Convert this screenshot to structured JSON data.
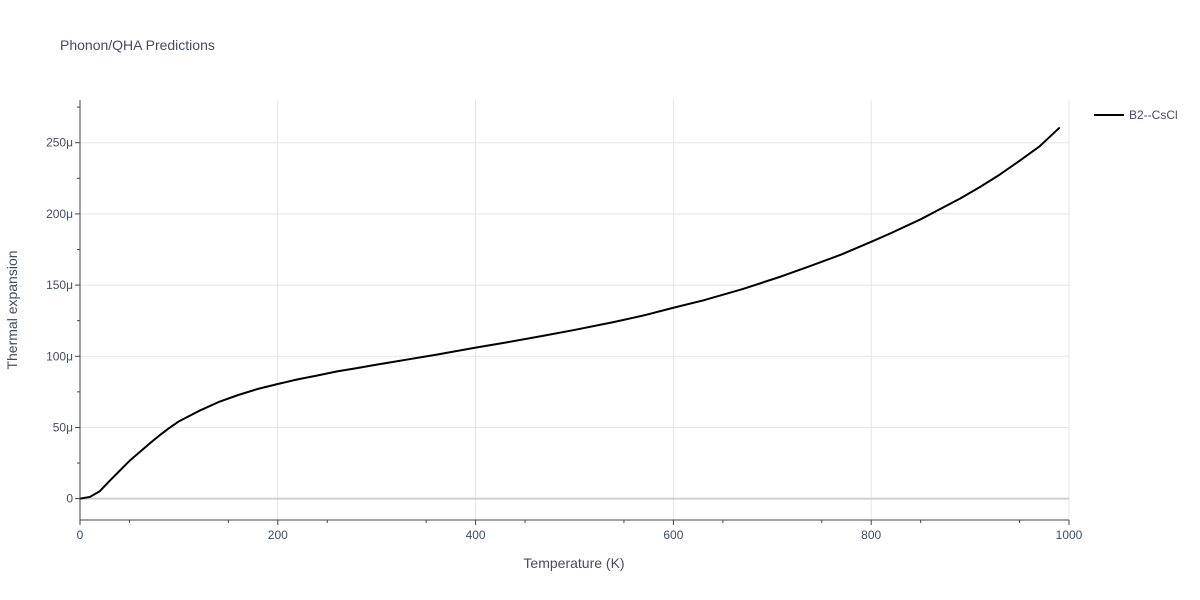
{
  "chart_data": {
    "type": "line",
    "title": "Phonon/QHA Predictions",
    "xlabel": "Temperature (K)",
    "ylabel": "Thermal expansion",
    "xlim": [
      0,
      1000
    ],
    "ylim": [
      -1.5e-05,
      0.00028
    ],
    "x_ticks": [
      0,
      200,
      400,
      600,
      800,
      1000
    ],
    "x_tick_labels": [
      "0",
      "200",
      "400",
      "600",
      "800",
      "1000"
    ],
    "y_ticks": [
      0,
      5e-05,
      0.0001,
      0.00015,
      0.0002,
      0.00025
    ],
    "y_tick_labels": [
      "0",
      "50μ",
      "100μ",
      "150μ",
      "200μ",
      "250μ"
    ],
    "grid": true,
    "legend_position": "top-right",
    "series": [
      {
        "name": "B2--CsCl",
        "color": "#000000",
        "x": [
          0,
          10,
          20,
          30,
          40,
          50,
          60,
          70,
          80,
          90,
          100,
          120,
          140,
          160,
          180,
          200,
          220,
          240,
          260,
          280,
          300,
          330,
          360,
          400,
          430,
          470,
          500,
          540,
          570,
          600,
          630,
          670,
          710,
          740,
          770,
          800,
          820,
          850,
          870,
          890,
          910,
          930,
          950,
          970,
          990
        ],
        "y": [
          0,
          1.2e-06,
          5.2e-06,
          1.25e-05,
          1.95e-05,
          2.65e-05,
          3.25e-05,
          3.85e-05,
          4.42e-05,
          4.95e-05,
          5.43e-05,
          6.15e-05,
          6.78e-05,
          7.28e-05,
          7.71e-05,
          8.05e-05,
          8.38e-05,
          8.65e-05,
          8.94e-05,
          9.17e-05,
          9.41e-05,
          9.76e-05,
          0.0001011,
          0.0001061,
          0.0001096,
          0.0001146,
          0.0001185,
          0.0001241,
          0.0001287,
          0.0001341,
          0.0001392,
          0.0001472,
          0.0001563,
          0.0001638,
          0.0001715,
          0.0001804,
          0.0001865,
          0.0001962,
          0.0002035,
          0.0002108,
          0.0002189,
          0.0002276,
          0.0002373,
          0.0002473,
          0.0002603
        ]
      }
    ]
  }
}
